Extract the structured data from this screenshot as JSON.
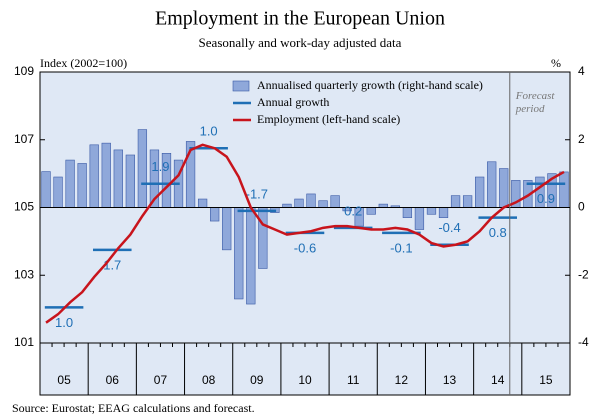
{
  "chart_data": {
    "type": "combo",
    "title": "Employment in the European Union",
    "subtitle": "Seasonally and work-day adjusted data",
    "y_label": "Index (2002=100)",
    "y2_label": "%",
    "annotation": "Forecast period",
    "source": "Source: Eurostat; EEAG calculations and forecast.",
    "years": [
      "05",
      "06",
      "07",
      "08",
      "09",
      "10",
      "11",
      "12",
      "13",
      "14",
      "15"
    ],
    "quarters_per_year": 4,
    "forecast_start_quarter": 39,
    "ylim": [
      101,
      109
    ],
    "yticks": [
      101,
      103,
      105,
      107,
      109
    ],
    "y2lim": [
      -4,
      4
    ],
    "y2ticks": [
      -4,
      -2,
      0,
      2,
      4
    ],
    "series": [
      {
        "name": "Annualised quarterly growth (right-hand scale)",
        "kind": "bar",
        "axis": "y2",
        "color": "#8fa8da",
        "edge": "#3a5aa6",
        "values": [
          1.06,
          0.9,
          1.4,
          1.3,
          1.85,
          1.9,
          1.7,
          1.55,
          2.3,
          1.7,
          1.6,
          1.4,
          1.95,
          0.25,
          -0.4,
          -1.25,
          -2.7,
          -2.85,
          -1.8,
          -0.15,
          0.1,
          0.25,
          0.4,
          0.2,
          0.35,
          -0.1,
          -0.55,
          -0.2,
          0.1,
          0.05,
          -0.3,
          -0.65,
          -0.2,
          -0.3,
          0.35,
          0.35,
          0.9,
          1.35,
          1.15,
          0.8,
          0.8,
          0.9,
          1.0,
          1.05
        ]
      },
      {
        "name": "Annual growth",
        "kind": "annual",
        "color": "#1f6fb5",
        "values": [
          102.05,
          103.75,
          105.7,
          106.75,
          104.9,
          104.25,
          104.4,
          104.25,
          103.9,
          104.7,
          105.7
        ],
        "growth_labels": [
          {
            "value": 1.0,
            "label": "1.0"
          },
          {
            "value": 1.7,
            "label": "1.7"
          },
          {
            "value": 1.9,
            "label": "1.9"
          },
          {
            "value": 1.0,
            "label": "1.0"
          },
          {
            "value": -1.7,
            "label": "-1.7"
          },
          {
            "value": -0.6,
            "label": "-0.6"
          },
          {
            "value": 0.2,
            "label": "0.2"
          },
          {
            "value": -0.1,
            "label": "-0.1"
          },
          {
            "value": -0.4,
            "label": "-0.4"
          },
          {
            "value": 0.8,
            "label": "0.8"
          },
          {
            "value": 0.9,
            "label": "0.9"
          }
        ]
      },
      {
        "name": "Employment (left-hand scale)",
        "kind": "line",
        "color": "#c8141c",
        "values": [
          101.6,
          101.85,
          102.2,
          102.5,
          102.95,
          103.35,
          103.8,
          104.2,
          104.75,
          105.25,
          105.6,
          105.95,
          106.7,
          106.85,
          106.75,
          106.5,
          105.9,
          105.0,
          104.5,
          104.35,
          104.2,
          104.25,
          104.3,
          104.4,
          104.45,
          104.45,
          104.4,
          104.35,
          104.35,
          104.4,
          104.35,
          104.2,
          103.95,
          103.85,
          103.9,
          104.0,
          104.3,
          104.7,
          105.0,
          105.15,
          105.35,
          105.6,
          105.85,
          106.05
        ]
      }
    ]
  }
}
